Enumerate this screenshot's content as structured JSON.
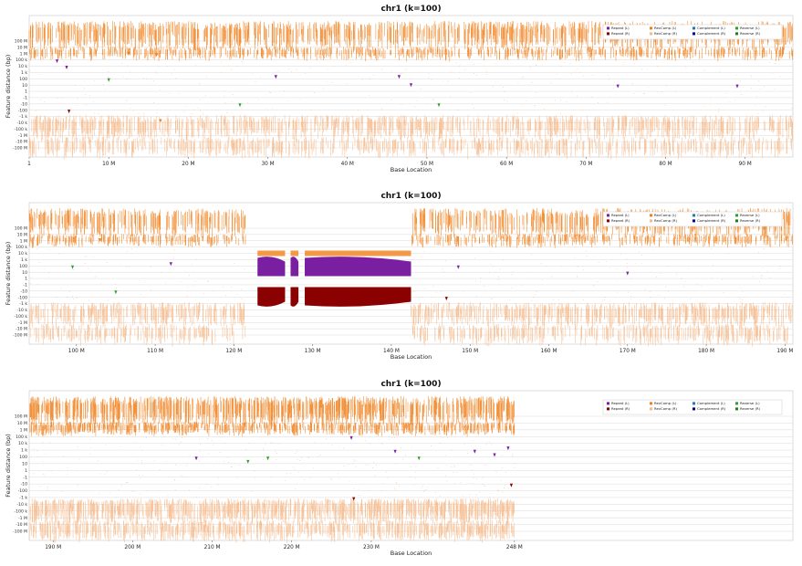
{
  "colors": {
    "repeat_l": "#7b1fa2",
    "repeat_r": "#8b0000",
    "revcomp_l": "#f07f1a",
    "revcomp_r": "#f4b98a",
    "complement_l": "#1f77b4",
    "complement_r": "#00008b",
    "reverse_l": "#2ca02c",
    "reverse_r": "#1b7d1b",
    "grid": "#d9d9d9"
  },
  "legend": {
    "entries": [
      {
        "key": "repeat_l",
        "label": "Repeat (L)"
      },
      {
        "key": "repeat_r",
        "label": "Repeat (R)"
      },
      {
        "key": "revcomp_l",
        "label": "RevComp (L)"
      },
      {
        "key": "revcomp_r",
        "label": "RevComp (R)"
      },
      {
        "key": "complement_l",
        "label": "Complement (L)"
      },
      {
        "key": "complement_r",
        "label": "Complement (R)"
      },
      {
        "key": "reverse_l",
        "label": "Reverse (L)"
      },
      {
        "key": "reverse_r",
        "label": "Reverse (R)"
      }
    ],
    "placement": "top-right"
  },
  "chart_data": [
    {
      "type": "scatter",
      "title": "chr1 (k=100)",
      "xlabel": "Base Location",
      "ylabel": "Feature distance (bp)",
      "xlim": [
        1,
        96000000
      ],
      "x_ticks": [
        {
          "v": 1,
          "label": "1"
        },
        {
          "v": 10000000,
          "label": "10 M"
        },
        {
          "v": 20000000,
          "label": "20 M"
        },
        {
          "v": 30000000,
          "label": "30 M"
        },
        {
          "v": 40000000,
          "label": "40 M"
        },
        {
          "v": 50000000,
          "label": "50 M"
        },
        {
          "v": 60000000,
          "label": "60 M"
        },
        {
          "v": 70000000,
          "label": "70 M"
        },
        {
          "v": 80000000,
          "label": "80 M"
        },
        {
          "v": 90000000,
          "label": "90 M"
        }
      ],
      "y_ticks": [
        "100 M",
        "10 M",
        "1 M",
        "100 k",
        "10 k",
        "1 k",
        "100",
        "10",
        "1",
        "-1",
        "-10",
        "-100",
        "-1 k",
        "-10 k",
        "-100 k",
        "-1 M",
        "-10 M",
        "-100 M"
      ],
      "data_end": 96000000,
      "gaps": [],
      "dense_features": [],
      "spikes": [
        {
          "x": 3500000,
          "y": 5,
          "series": "repeat_l"
        },
        {
          "x": 4700000,
          "y": 4,
          "series": "repeat_l"
        },
        {
          "x": 5000000,
          "y": -3,
          "series": "repeat_r"
        },
        {
          "x": 12500000,
          "y": 6.2,
          "series": "revcomp_l"
        },
        {
          "x": 16000000,
          "y": 6,
          "series": "revcomp_l"
        },
        {
          "x": 16500000,
          "y": -4.5,
          "series": "revcomp_l"
        },
        {
          "x": 10000000,
          "y": 2,
          "series": "reverse_l"
        },
        {
          "x": 26500000,
          "y": -2,
          "series": "reverse_l"
        },
        {
          "x": 31000000,
          "y": 2.5,
          "series": "repeat_l"
        },
        {
          "x": 46500000,
          "y": 2.5,
          "series": "repeat_l"
        },
        {
          "x": 48000000,
          "y": 1.2,
          "series": "repeat_l"
        },
        {
          "x": 51500000,
          "y": -2,
          "series": "reverse_l"
        },
        {
          "x": 74000000,
          "y": 1,
          "series": "repeat_l"
        },
        {
          "x": 89000000,
          "y": 1,
          "series": "repeat_l"
        }
      ]
    },
    {
      "type": "scatter",
      "title": "chr1 (k=100)",
      "xlabel": "Base Location",
      "ylabel": "Feature distance (bp)",
      "xlim": [
        94000000,
        191000000
      ],
      "x_ticks": [
        {
          "v": 100000000,
          "label": "100 M"
        },
        {
          "v": 110000000,
          "label": "110 M"
        },
        {
          "v": 120000000,
          "label": "120 M"
        },
        {
          "v": 130000000,
          "label": "130 M"
        },
        {
          "v": 140000000,
          "label": "140 M"
        },
        {
          "v": 150000000,
          "label": "150 M"
        },
        {
          "v": 160000000,
          "label": "160 M"
        },
        {
          "v": 170000000,
          "label": "170 M"
        },
        {
          "v": 180000000,
          "label": "180 M"
        },
        {
          "v": 190000000,
          "label": "190 M"
        }
      ],
      "y_ticks": [
        "100 M",
        "10 M",
        "1 M",
        "100 k",
        "10 k",
        "1 k",
        "100",
        "10",
        "1",
        "-1",
        "-10",
        "-100",
        "-1 k",
        "-10 k",
        "-100 k",
        "-1 M",
        "-10 M",
        "-100 M"
      ],
      "data_end": 191000000,
      "gaps": [
        [
          121500000,
          142500000
        ]
      ],
      "dense_features": [
        {
          "x0": 123000000,
          "x1": 126500000
        },
        {
          "x0": 127200000,
          "x1": 128200000
        },
        {
          "x0": 129000000,
          "x1": 142500000
        }
      ],
      "spikes": [
        {
          "x": 103000000,
          "y": 6.3,
          "series": "revcomp_l"
        },
        {
          "x": 99500000,
          "y": 2,
          "series": "reverse_l"
        },
        {
          "x": 105000000,
          "y": -2,
          "series": "reverse_l"
        },
        {
          "x": 112000000,
          "y": 2.5,
          "series": "repeat_l"
        },
        {
          "x": 141000000,
          "y": -3,
          "series": "repeat_r"
        },
        {
          "x": 147000000,
          "y": -3,
          "series": "repeat_r"
        },
        {
          "x": 148500000,
          "y": 2,
          "series": "repeat_l"
        },
        {
          "x": 170000000,
          "y": 1,
          "series": "repeat_l"
        }
      ]
    },
    {
      "type": "scatter",
      "title": "chr1 (k=100)",
      "xlabel": "Base Location",
      "ylabel": "Feature distance (bp)",
      "xlim": [
        187000000,
        283000000
      ],
      "x_ticks": [
        {
          "v": 190000000,
          "label": "190 M"
        },
        {
          "v": 200000000,
          "label": "200 M"
        },
        {
          "v": 210000000,
          "label": "210 M"
        },
        {
          "v": 220000000,
          "label": "220 M"
        },
        {
          "v": 230000000,
          "label": "230 M"
        },
        {
          "v": 248000000,
          "label": "248 M"
        }
      ],
      "y_ticks": [
        "100 M",
        "10 M",
        "1 M",
        "100 k",
        "10 k",
        "1 k",
        "100",
        "10",
        "1",
        "-1",
        "-10",
        "-100",
        "-1 k",
        "-10 k",
        "-100 k",
        "-1 M",
        "-10 M",
        "-100 M"
      ],
      "data_end": 248000000,
      "gaps": [],
      "dense_features": [],
      "spikes": [
        {
          "x": 208000000,
          "y": 2,
          "series": "repeat_l"
        },
        {
          "x": 214500000,
          "y": 1.5,
          "series": "reverse_l"
        },
        {
          "x": 217000000,
          "y": 2,
          "series": "reverse_l"
        },
        {
          "x": 227500000,
          "y": 5,
          "series": "repeat_l"
        },
        {
          "x": 227800000,
          "y": -4,
          "series": "repeat_r"
        },
        {
          "x": 233000000,
          "y": 3,
          "series": "repeat_l"
        },
        {
          "x": 236000000,
          "y": 2,
          "series": "reverse_l"
        },
        {
          "x": 243000000,
          "y": 3,
          "series": "repeat_l"
        },
        {
          "x": 245500000,
          "y": 2.5,
          "series": "repeat_l"
        },
        {
          "x": 247200000,
          "y": 3.5,
          "series": "repeat_l"
        },
        {
          "x": 247600000,
          "y": -2,
          "series": "repeat_r"
        }
      ]
    }
  ]
}
